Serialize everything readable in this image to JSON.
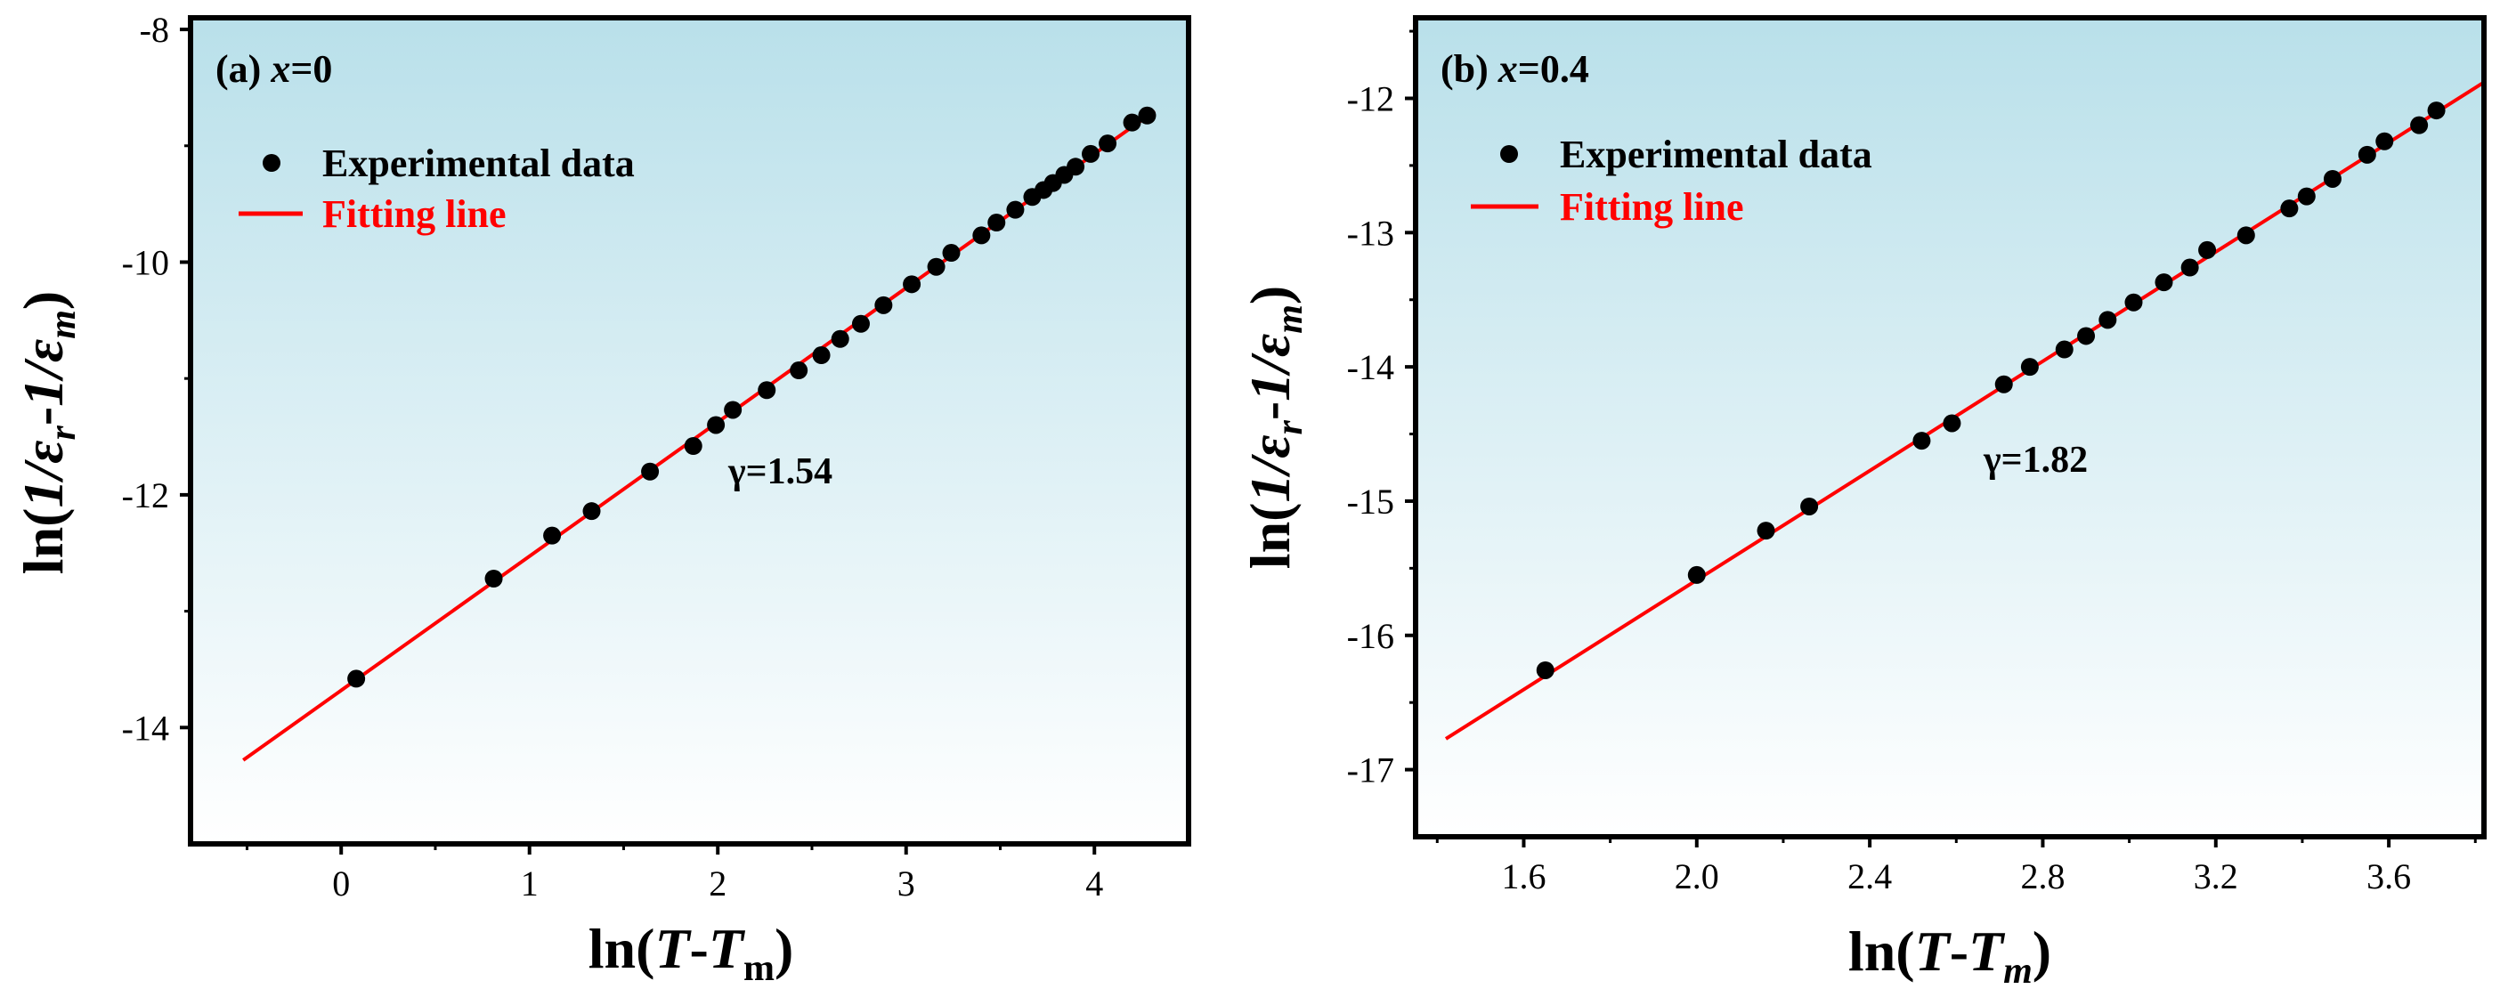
{
  "colors": {
    "plot_bg_top": "#b9e0ea",
    "plot_bg_bottom": "#ffffff",
    "fit_line": "#ff0000",
    "marker": "#000000",
    "legend_fit_text": "#ff0000"
  },
  "chart_data": [
    {
      "type": "scatter",
      "panel_label": "(a)",
      "composition_label": "x=0",
      "xlabel": "ln(T-Tm)",
      "ylabel": "ln(1/εr-1/εm)",
      "xlim": [
        -0.8,
        4.5
      ],
      "ylim": [
        -15,
        -7.9
      ],
      "xticks": [
        0,
        1,
        2,
        3,
        4
      ],
      "yticks": [
        -14,
        -12,
        -10,
        -8
      ],
      "grid": false,
      "legend_position": "top-left",
      "legend": [
        "Experimental data",
        "Fitting line"
      ],
      "annotation": "γ=1.54",
      "series": [
        {
          "name": "Experimental data",
          "x": [
            0.08,
            0.81,
            1.12,
            1.33,
            1.64,
            1.87,
            1.99,
            2.08,
            2.26,
            2.43,
            2.55,
            2.65,
            2.76,
            2.88,
            3.03,
            3.16,
            3.24,
            3.4,
            3.48,
            3.58,
            3.67,
            3.73,
            3.78,
            3.84,
            3.9,
            3.98,
            4.07,
            4.2,
            4.28
          ],
          "y": [
            -13.58,
            -12.72,
            -12.35,
            -12.14,
            -11.8,
            -11.58,
            -11.4,
            -11.27,
            -11.1,
            -10.93,
            -10.8,
            -10.66,
            -10.53,
            -10.37,
            -10.19,
            -10.04,
            -9.92,
            -9.77,
            -9.66,
            -9.55,
            -9.44,
            -9.38,
            -9.32,
            -9.25,
            -9.18,
            -9.07,
            -8.98,
            -8.8,
            -8.74
          ]
        },
        {
          "name": "Fitting line",
          "x": [
            -0.52,
            4.32
          ],
          "y": [
            -14.28,
            -8.7
          ]
        }
      ]
    },
    {
      "type": "scatter",
      "panel_label": "(b)",
      "composition_label": "x=0.4",
      "xlabel": "ln(T-Tm)",
      "ylabel": "ln(1/εr-1/εm)",
      "xlim": [
        1.35,
        3.82
      ],
      "ylim": [
        -17.5,
        -11.4
      ],
      "xticks": [
        1.6,
        2.0,
        2.4,
        2.8,
        3.2,
        3.6
      ],
      "yticks": [
        -17,
        -16,
        -15,
        -14,
        -13,
        -12
      ],
      "grid": false,
      "legend_position": "top-left",
      "legend": [
        "Experimental data",
        "Fitting line"
      ],
      "annotation": "γ=1.82",
      "series": [
        {
          "name": "Experimental data",
          "x": [
            1.65,
            2.0,
            2.16,
            2.26,
            2.52,
            2.59,
            2.71,
            2.77,
            2.85,
            2.9,
            2.95,
            3.01,
            3.08,
            3.14,
            3.18,
            3.27,
            3.37,
            3.41,
            3.47,
            3.55,
            3.59,
            3.67,
            3.71
          ],
          "y": [
            -16.26,
            -15.55,
            -15.22,
            -15.04,
            -14.55,
            -14.42,
            -14.13,
            -14.0,
            -13.87,
            -13.77,
            -13.65,
            -13.52,
            -13.37,
            -13.26,
            -13.13,
            -13.02,
            -12.82,
            -12.73,
            -12.6,
            -12.42,
            -12.32,
            -12.2,
            -12.09
          ]
        },
        {
          "name": "Fitting line",
          "x": [
            1.42,
            3.82
          ],
          "y": [
            -16.77,
            -11.88
          ]
        }
      ]
    }
  ]
}
